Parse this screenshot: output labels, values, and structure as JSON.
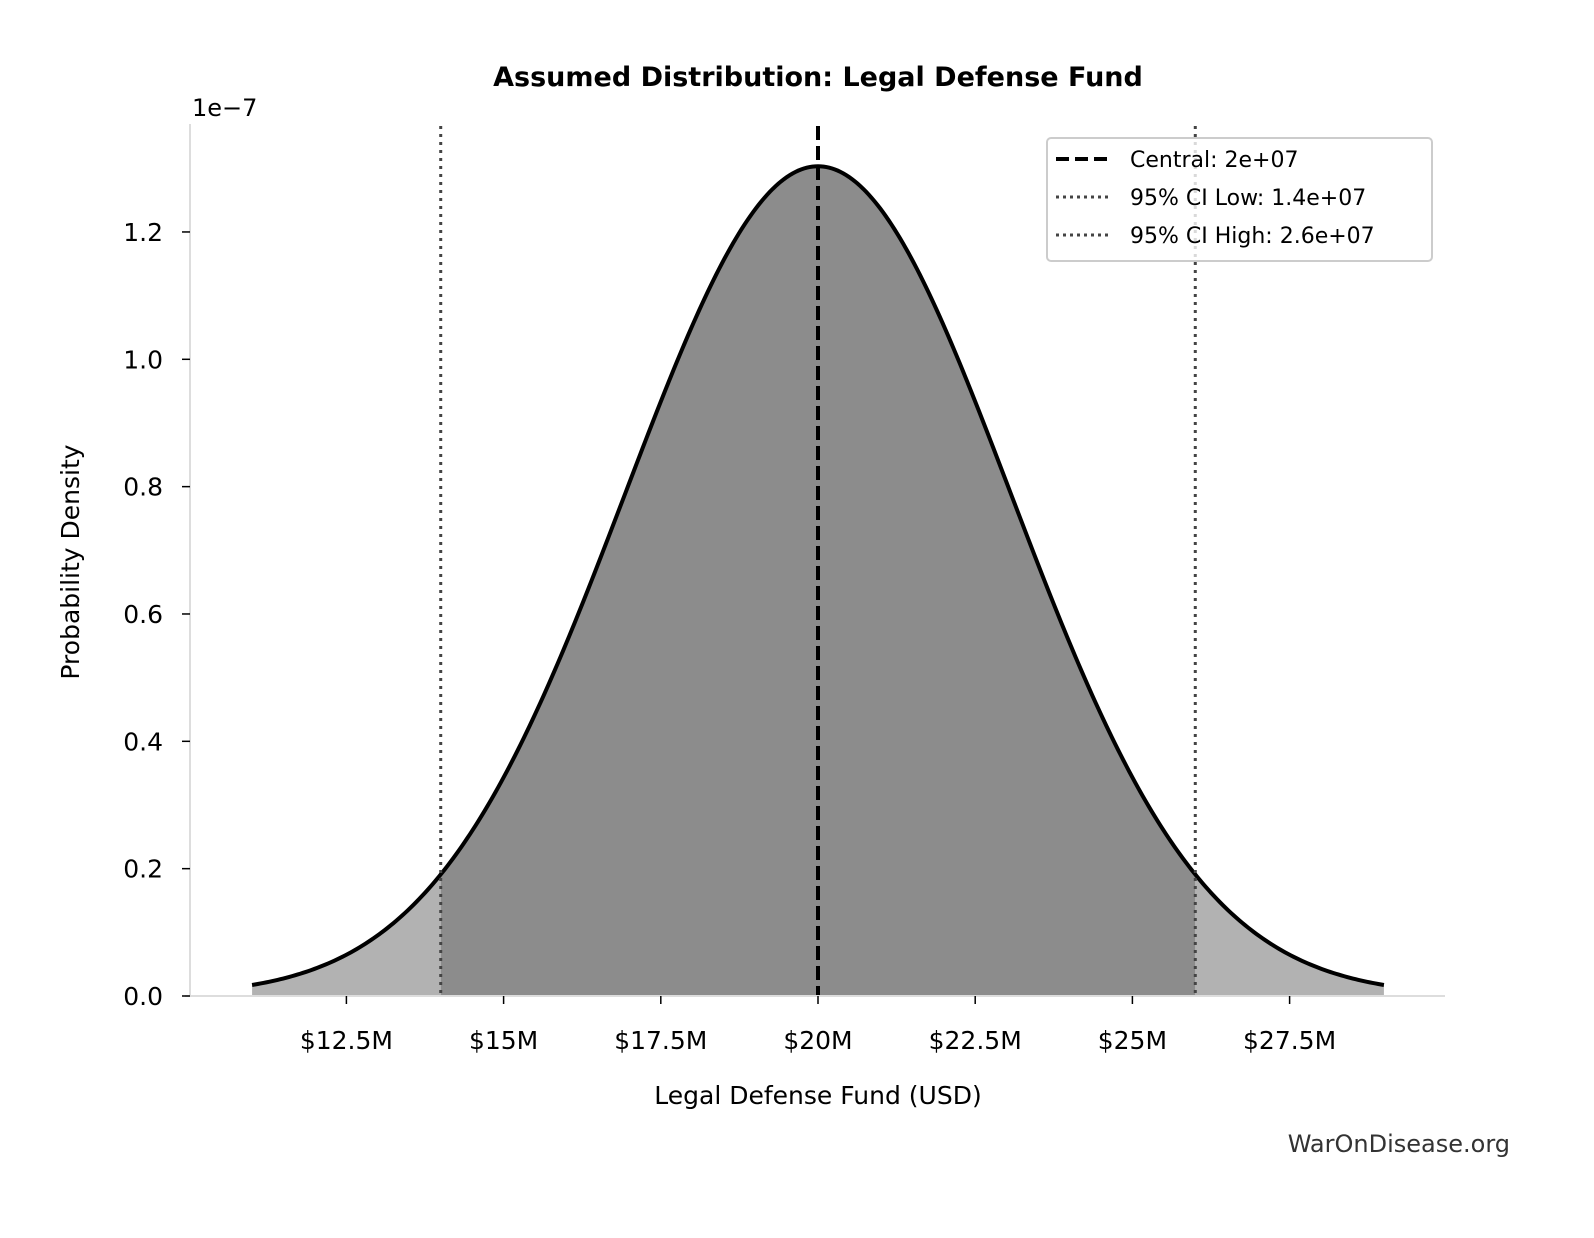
{
  "chart_data": {
    "type": "area",
    "title": "Assumed Distribution: Legal Defense Fund",
    "xlabel": "Legal Defense Fund (USD)",
    "ylabel": "Probability Density",
    "y_offset_label": "1e−7",
    "distribution": {
      "kind": "normal",
      "mean": 20000000,
      "ci_low": 14000000,
      "ci_high": 26000000
    },
    "x_range_plotted": [
      11000000,
      29000000
    ],
    "xlim": [
      9000000,
      29900000
    ],
    "ylim": [
      0,
      1.37
    ],
    "x_ticks": [
      {
        "value": 12500000,
        "label": "$12.5M"
      },
      {
        "value": 15000000,
        "label": "$15M"
      },
      {
        "value": 17500000,
        "label": "$17.5M"
      },
      {
        "value": 20000000,
        "label": "$20M"
      },
      {
        "value": 22500000,
        "label": "$22.5M"
      },
      {
        "value": 25000000,
        "label": "$25M"
      },
      {
        "value": 27500000,
        "label": "$27.5M"
      }
    ],
    "y_ticks": [
      {
        "value": 0.0,
        "label": "0.0"
      },
      {
        "value": 0.2,
        "label": "0.2"
      },
      {
        "value": 0.4,
        "label": "0.4"
      },
      {
        "value": 0.6,
        "label": "0.6"
      },
      {
        "value": 0.8,
        "label": "0.8"
      },
      {
        "value": 1.0,
        "label": "1.0"
      },
      {
        "value": 1.2,
        "label": "1.2"
      }
    ],
    "reference_lines": [
      {
        "name": "Central: 2e+07",
        "x": 20000000,
        "style": "dashed",
        "color": "#000000"
      },
      {
        "name": "95% CI Low: 1.4e+07",
        "x": 14000000,
        "style": "dotted",
        "color": "#444444"
      },
      {
        "name": "95% CI High: 2.6e+07",
        "x": 26000000,
        "style": "dotted",
        "color": "#444444"
      }
    ],
    "legend_position": "top-right",
    "grid": false,
    "colors": {
      "ci_fill": "#8c8c8c",
      "tail_fill": "#b2b2b2",
      "curve": "#000000"
    }
  },
  "watermark": "WarOnDisease.org"
}
